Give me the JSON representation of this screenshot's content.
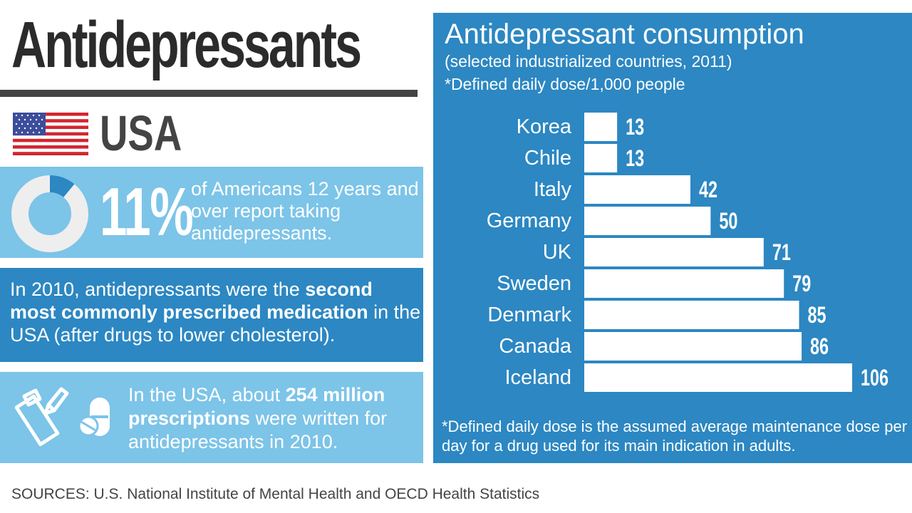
{
  "header": {
    "title": "Antidepressants"
  },
  "country": {
    "label": "USA"
  },
  "stat_card": {
    "value": "11%",
    "fraction": 0.11,
    "text": "of Americans 12 years and over report taking antidepressants."
  },
  "rank_card": {
    "text_before": "In 2010, antidepressants were the ",
    "text_bold": "second most commonly prescribed medication",
    "text_after": " in the USA (after drugs to lower cholesterol)."
  },
  "rx_card": {
    "text_before": "In the USA, about ",
    "text_bold": "254 million prescriptions",
    "text_after": " were written for antidepressants in 2010."
  },
  "chart_data": {
    "type": "bar",
    "orientation": "horizontal",
    "title": "Antidepressant consumption",
    "subtitle": "(selected industrialized countries, 2011)",
    "unit_note": "*Defined daily dose/1,000 people",
    "categories": [
      "Korea",
      "Chile",
      "Italy",
      "Germany",
      "UK",
      "Sweden",
      "Denmark",
      "Canada",
      "Iceland"
    ],
    "values": [
      13,
      13,
      42,
      50,
      71,
      79,
      85,
      86,
      106
    ],
    "value_labels": [
      "13",
      "13",
      "42",
      "50",
      "71",
      "79",
      "85",
      "86",
      "106"
    ],
    "xlim": [
      0,
      106
    ],
    "grid": false,
    "legend": "none",
    "footnote": "*Defined daily dose is the assumed average maintenance dose per day for a drug used for its main indication in adults."
  },
  "sources": "SOURCES: U.S. National Institute of Mental Health and OECD Health Statistics",
  "colors": {
    "dark_blue": "#2c87c2",
    "light_blue": "#7cc4e8",
    "text_dark": "#2b2b2b",
    "bar": "#ffffff",
    "donut_track": "#eeeeee",
    "donut_fill": "#2c87c2"
  },
  "icons": {
    "flag": "usa-flag-icon",
    "donut": "donut-chart-icon",
    "prescription": "prescription-clipboard-icon",
    "pills": "pills-icon"
  }
}
